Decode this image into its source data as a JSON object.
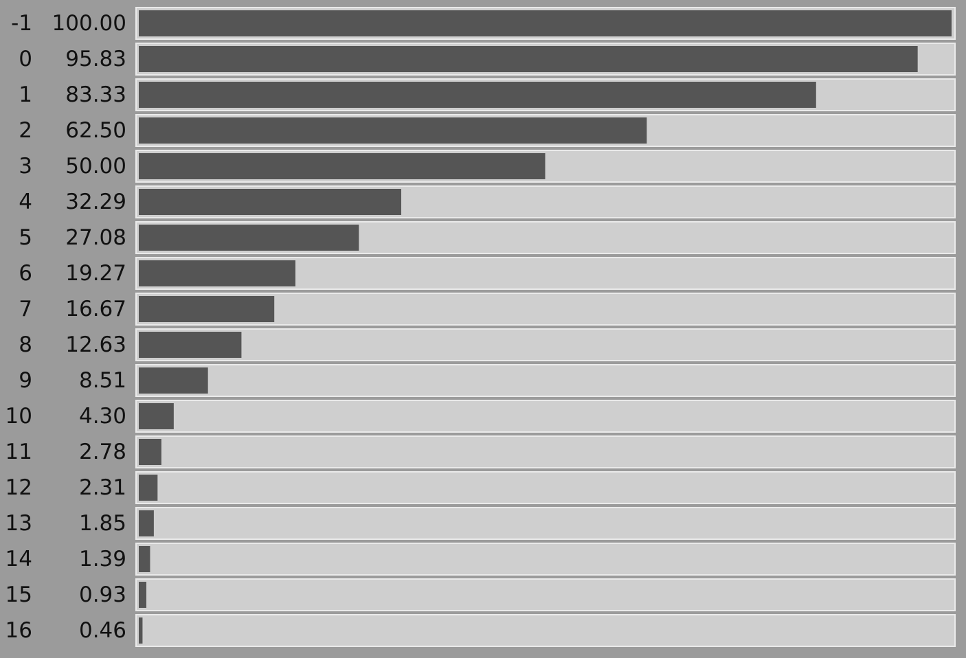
{
  "colors": {
    "background": "#9b9b9b",
    "track": "#cfcfcf",
    "track_border": "#eaeaea",
    "bar": "#555555",
    "text": "#111111"
  },
  "chart_data": {
    "type": "bar",
    "orientation": "horizontal",
    "categories": [
      "-1",
      "0",
      "1",
      "2",
      "3",
      "4",
      "5",
      "6",
      "7",
      "8",
      "9",
      "10",
      "11",
      "12",
      "13",
      "14",
      "15",
      "16"
    ],
    "values": [
      100.0,
      95.83,
      83.33,
      62.5,
      50.0,
      32.29,
      27.08,
      19.27,
      16.67,
      12.63,
      8.51,
      4.3,
      2.78,
      2.31,
      1.85,
      1.39,
      0.93,
      0.46
    ],
    "value_labels": [
      "100.00",
      "95.83",
      "83.33",
      "62.50",
      "50.00",
      "32.29",
      "27.08",
      "19.27",
      "16.67",
      "12.63",
      "8.51",
      "4.30",
      "2.78",
      "2.31",
      "1.85",
      "1.39",
      "0.93",
      "0.46"
    ],
    "xlim": [
      0,
      100
    ],
    "grid": false,
    "legend": "none"
  }
}
